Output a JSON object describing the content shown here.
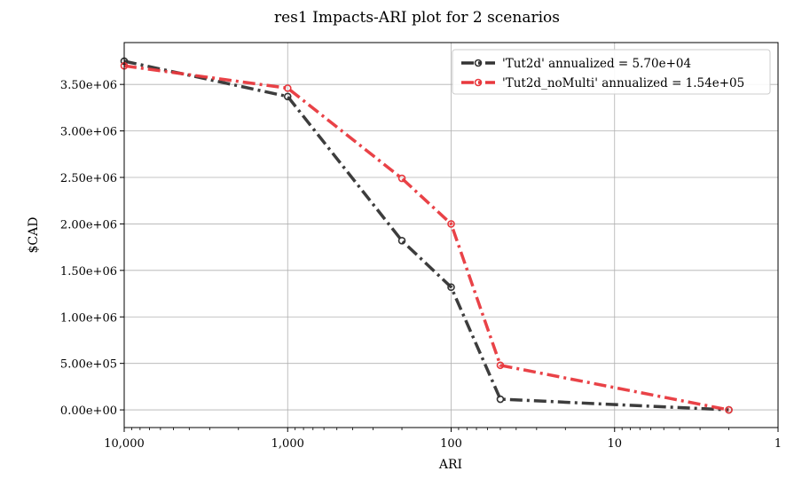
{
  "chart_data": {
    "type": "line",
    "title": "res1 Impacts-ARI plot for 2 scenarios",
    "xlabel": "ARI",
    "ylabel": "$CAD",
    "x_scale": "log",
    "x_reversed": true,
    "xlim": [
      10000,
      1
    ],
    "ylim": [
      -190000,
      3950000
    ],
    "x_ticks": [
      10000,
      1000,
      100,
      10,
      1
    ],
    "x_tick_labels": [
      "10,000",
      "1,000",
      "100",
      "10",
      "1"
    ],
    "y_ticks": [
      0,
      500000,
      1000000,
      1500000,
      2000000,
      2500000,
      3000000,
      3500000
    ],
    "y_tick_labels": [
      "0.00e+00",
      "5.00e+05",
      "1.00e+06",
      "1.50e+06",
      "2.00e+06",
      "2.50e+06",
      "3.00e+06",
      "3.50e+06"
    ],
    "grid": true,
    "legend_position": "top-right",
    "series": [
      {
        "name": "'Tut2d' annualized = 5.70e+04",
        "color": "#333333",
        "linestyle": "dash-dot",
        "marker": "circle",
        "x": [
          10000,
          1000,
          200,
          100,
          50,
          2
        ],
        "y": [
          3750000,
          3370000,
          1820000,
          1320000,
          115000,
          0
        ]
      },
      {
        "name": "'Tut2d_noMulti' annualized = 1.54e+05",
        "color": "#e8383d",
        "linestyle": "dash-dot",
        "marker": "circle",
        "x": [
          10000,
          1000,
          200,
          100,
          50,
          2
        ],
        "y": [
          3700000,
          3460000,
          2490000,
          2000000,
          480000,
          0
        ]
      }
    ]
  }
}
